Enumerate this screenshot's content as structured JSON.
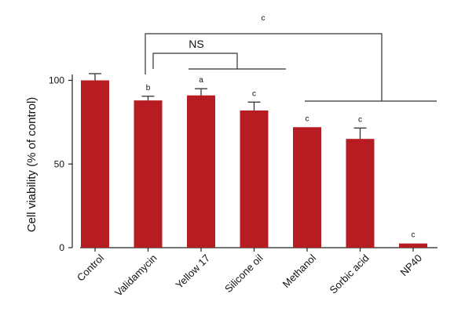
{
  "chart_data": {
    "type": "bar",
    "categories": [
      "Control",
      "Validamycin",
      "Yellow 17",
      "Silicone oil",
      "Methanol",
      "Sorbic acid",
      "NP40"
    ],
    "values": [
      100,
      88,
      91,
      82,
      72,
      65,
      2.5
    ],
    "errors": [
      4,
      2.5,
      4,
      5,
      0,
      6.5,
      0
    ],
    "significance": [
      "",
      "b",
      "a",
      "c",
      "c",
      "c",
      "c"
    ],
    "ylabel": "Cell viability (% of control)",
    "yticks": [
      0,
      50,
      100
    ],
    "ylim": [
      0,
      100
    ],
    "bar_color": "#b71c23",
    "annotations": {
      "ns_label": "NS",
      "top_label": "c"
    },
    "grid": false,
    "legend": "none"
  }
}
